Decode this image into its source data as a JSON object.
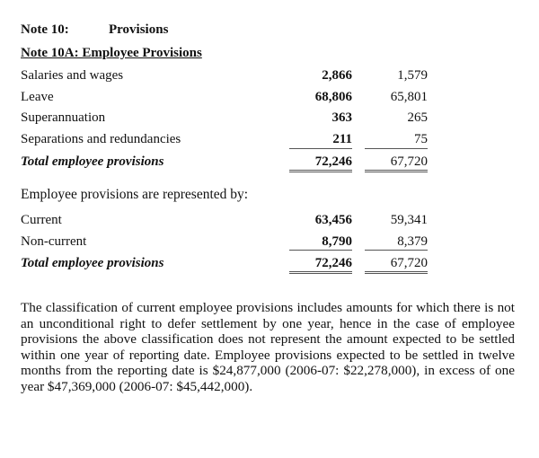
{
  "note": {
    "number": "Note 10:",
    "title": "Provisions"
  },
  "subnote": "Note 10A:  Employee Provisions",
  "table1": {
    "rows": [
      {
        "label": "Salaries and wages",
        "current_year": "2,866",
        "prior_year": "1,579"
      },
      {
        "label": "Leave",
        "current_year": "68,806",
        "prior_year": "65,801"
      },
      {
        "label": "Superannuation",
        "current_year": "363",
        "prior_year": "265"
      },
      {
        "label": "Separations and redundancies",
        "current_year": "211",
        "prior_year": "75"
      }
    ],
    "total": {
      "label": "Total employee provisions",
      "current_year": "72,246",
      "prior_year": "67,720"
    }
  },
  "represented_by": "Employee provisions are represented by:",
  "table2": {
    "rows": [
      {
        "label": "Current",
        "current_year": "63,456",
        "prior_year": "59,341"
      },
      {
        "label": "Non-current",
        "current_year": "8,790",
        "prior_year": "8,379"
      }
    ],
    "total": {
      "label": "Total employee provisions",
      "current_year": "72,246",
      "prior_year": "67,720"
    }
  },
  "paragraph": "The classification of current employee provisions includes amounts for which there is not an unconditional right to defer settlement by one year, hence in the case of employee provisions the above classification does not represent the amount expected to be settled within one year of reporting date.  Employee provisions expected to be settled in twelve months from the reporting date is $24,877,000 (2006-07: $22,278,000), in excess of one year $47,369,000 (2006-07: $45,442,000)."
}
